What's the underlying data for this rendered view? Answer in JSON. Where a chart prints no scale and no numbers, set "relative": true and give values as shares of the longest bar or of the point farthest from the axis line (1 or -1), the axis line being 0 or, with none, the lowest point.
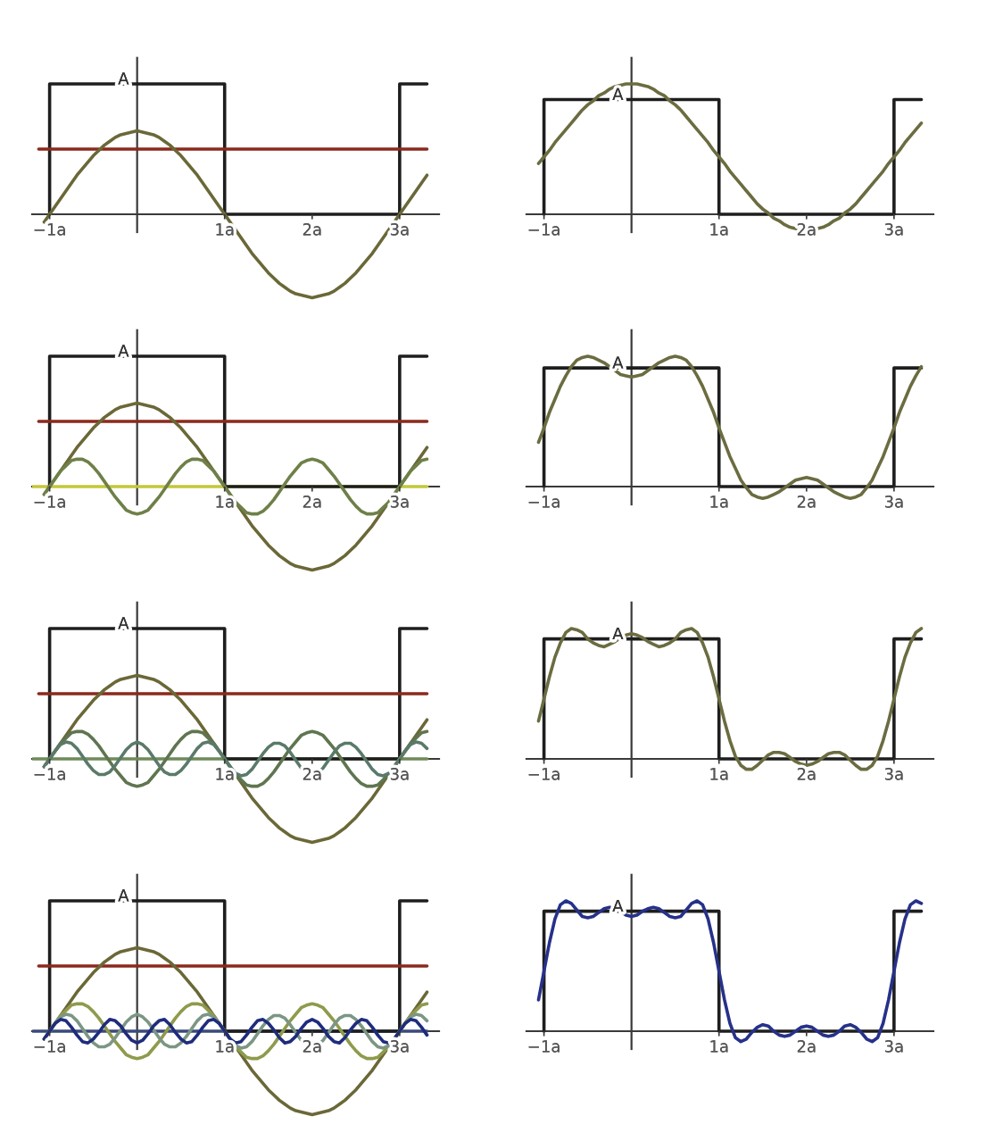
{
  "chart_data": [
    {
      "type": "line",
      "relative": true,
      "tick_labels": "x",
      "xlim": [
        -1.2,
        3.45
      ],
      "xticks": [
        {
          "value": -1,
          "label": "−1a"
        },
        {
          "value": 1,
          "label": "1a"
        },
        {
          "value": 2,
          "label": "2a"
        },
        {
          "value": 3,
          "label": "3a"
        }
      ],
      "x": [
        -1.0625,
        -1,
        -0.9375,
        -0.875,
        -0.8125,
        -0.75,
        -0.6875,
        -0.625,
        -0.5625,
        -0.5,
        -0.4375,
        -0.375,
        -0.3125,
        -0.25,
        -0.1875,
        -0.125,
        -0.0625,
        0,
        0.0625,
        0.125,
        0.1875,
        0.25,
        0.3125,
        0.375,
        0.4375,
        0.5,
        0.5625,
        0.625,
        0.6875,
        0.75,
        0.8125,
        0.875,
        0.9375,
        1,
        1.0625,
        1.125,
        1.1875,
        1.25,
        1.3125,
        1.375,
        1.4375,
        1.5,
        1.5625,
        1.625,
        1.6875,
        1.75,
        1.8125,
        1.875,
        1.9375,
        2,
        2.0625,
        2.125,
        2.1875,
        2.25,
        2.3125,
        2.375,
        2.4375,
        2.5,
        2.5625,
        2.625,
        2.6875,
        2.75,
        2.8125,
        2.875,
        2.9375,
        3,
        3.0625,
        3.125,
        3.1875,
        3.25,
        3.3125
      ],
      "series": [
        {
          "color": "#1e1e1e",
          "x": [
            -1,
            -1,
            1,
            1,
            3,
            3,
            3.3125
          ],
          "values": [
            0,
            1,
            1,
            0,
            0,
            1,
            1
          ]
        },
        {
          "color": "#8a2a1c",
          "x": [
            -1.125,
            3.3125
          ],
          "values": [
            0.5,
            0.5
          ]
        },
        {
          "color": "#6b6838",
          "values": [
            -0.06,
            0,
            0.06,
            0.12,
            0.18,
            0.24,
            0.3,
            0.35,
            0.4,
            0.45,
            0.49,
            0.53,
            0.56,
            0.59,
            0.61,
            0.62,
            0.63,
            0.64,
            0.63,
            0.62,
            0.61,
            0.59,
            0.56,
            0.53,
            0.49,
            0.45,
            0.4,
            0.35,
            0.3,
            0.24,
            0.18,
            0.12,
            0.06,
            0,
            -0.06,
            -0.12,
            -0.18,
            -0.24,
            -0.3,
            -0.35,
            -0.4,
            -0.45,
            -0.49,
            -0.53,
            -0.56,
            -0.59,
            -0.61,
            -0.62,
            -0.63,
            -0.64,
            -0.63,
            -0.62,
            -0.61,
            -0.59,
            -0.56,
            -0.53,
            -0.49,
            -0.45,
            -0.4,
            -0.35,
            -0.3,
            -0.24,
            -0.18,
            -0.12,
            -0.06,
            0,
            0.06,
            0.12,
            0.18,
            0.24,
            0.3
          ]
        }
      ],
      "annotations": [
        {
          "text": "A",
          "y": 1
        }
      ]
    },
    {
      "type": "line",
      "relative": true,
      "tick_labels": "x",
      "xlim": [
        -1.2,
        3.45
      ],
      "xticks": [
        {
          "value": -1,
          "label": "−1a"
        },
        {
          "value": 1,
          "label": "1a"
        },
        {
          "value": 2,
          "label": "2a"
        },
        {
          "value": 3,
          "label": "3a"
        }
      ],
      "x": [
        -1.0625,
        -1,
        -0.9375,
        -0.875,
        -0.8125,
        -0.75,
        -0.6875,
        -0.625,
        -0.5625,
        -0.5,
        -0.4375,
        -0.375,
        -0.3125,
        -0.25,
        -0.1875,
        -0.125,
        -0.0625,
        0,
        0.0625,
        0.125,
        0.1875,
        0.25,
        0.3125,
        0.375,
        0.4375,
        0.5,
        0.5625,
        0.625,
        0.6875,
        0.75,
        0.8125,
        0.875,
        0.9375,
        1,
        1.0625,
        1.125,
        1.1875,
        1.25,
        1.3125,
        1.375,
        1.4375,
        1.5,
        1.5625,
        1.625,
        1.6875,
        1.75,
        1.8125,
        1.875,
        1.9375,
        2,
        2.0625,
        2.125,
        2.1875,
        2.25,
        2.3125,
        2.375,
        2.4375,
        2.5,
        2.5625,
        2.625,
        2.6875,
        2.75,
        2.8125,
        2.875,
        2.9375,
        3,
        3.0625,
        3.125,
        3.1875,
        3.25,
        3.3125
      ],
      "series": [
        {
          "color": "#1e1e1e",
          "x": [
            -1,
            -1,
            1,
            1,
            3,
            3,
            3.3125
          ],
          "values": [
            0,
            0.88,
            0.88,
            0,
            0,
            0.88,
            0.88
          ]
        },
        {
          "color": "#6b6c40",
          "values": [
            0.39,
            0.44,
            0.49,
            0.55,
            0.6,
            0.65,
            0.7,
            0.75,
            0.8,
            0.84,
            0.87,
            0.91,
            0.93,
            0.96,
            0.98,
            0.99,
            1,
            1,
            1,
            0.99,
            0.98,
            0.96,
            0.93,
            0.91,
            0.87,
            0.84,
            0.8,
            0.75,
            0.7,
            0.65,
            0.6,
            0.55,
            0.49,
            0.44,
            0.39,
            0.33,
            0.28,
            0.23,
            0.18,
            0.13,
            0.08,
            0.04,
            0.01,
            -0.03,
            -0.05,
            -0.08,
            -0.1,
            -0.11,
            -0.12,
            -0.12,
            -0.12,
            -0.11,
            -0.1,
            -0.08,
            -0.05,
            -0.03,
            0.01,
            0.04,
            0.08,
            0.13,
            0.18,
            0.23,
            0.28,
            0.33,
            0.39,
            0.44,
            0.49,
            0.55,
            0.6,
            0.65,
            0.7
          ]
        }
      ],
      "annotations": [
        {
          "text": "A",
          "y": 0.88
        }
      ]
    },
    {
      "type": "line",
      "relative": true,
      "tick_labels": "x",
      "xlim": [
        -1.2,
        3.45
      ],
      "xticks": [
        {
          "value": -1,
          "label": "−1a"
        },
        {
          "value": 1,
          "label": "1a"
        },
        {
          "value": 2,
          "label": "2a"
        },
        {
          "value": 3,
          "label": "3a"
        }
      ],
      "x": [
        -1.0625,
        -1,
        -0.9375,
        -0.875,
        -0.8125,
        -0.75,
        -0.6875,
        -0.625,
        -0.5625,
        -0.5,
        -0.4375,
        -0.375,
        -0.3125,
        -0.25,
        -0.1875,
        -0.125,
        -0.0625,
        0,
        0.0625,
        0.125,
        0.1875,
        0.25,
        0.3125,
        0.375,
        0.4375,
        0.5,
        0.5625,
        0.625,
        0.6875,
        0.75,
        0.8125,
        0.875,
        0.9375,
        1,
        1.0625,
        1.125,
        1.1875,
        1.25,
        1.3125,
        1.375,
        1.4375,
        1.5,
        1.5625,
        1.625,
        1.6875,
        1.75,
        1.8125,
        1.875,
        1.9375,
        2,
        2.0625,
        2.125,
        2.1875,
        2.25,
        2.3125,
        2.375,
        2.4375,
        2.5,
        2.5625,
        2.625,
        2.6875,
        2.75,
        2.8125,
        2.875,
        2.9375,
        3,
        3.0625,
        3.125,
        3.1875,
        3.25,
        3.3125
      ],
      "series": [
        {
          "color": "#c4c83a",
          "x": [
            -1.1875,
            3.3125
          ],
          "values": [
            0,
            0
          ]
        },
        {
          "color": "#1e1e1e",
          "x": [
            -1,
            -1,
            1,
            1,
            3,
            3,
            3.3125
          ],
          "values": [
            0,
            1,
            1,
            0,
            0,
            1,
            1
          ]
        },
        {
          "color": "#8a2a1c",
          "x": [
            -1.125,
            3.3125
          ],
          "values": [
            0.5,
            0.5
          ]
        },
        {
          "color": "#6b6838",
          "values": [
            -0.06,
            0,
            0.06,
            0.12,
            0.18,
            0.24,
            0.3,
            0.35,
            0.4,
            0.45,
            0.49,
            0.53,
            0.56,
            0.59,
            0.61,
            0.62,
            0.63,
            0.64,
            0.63,
            0.62,
            0.61,
            0.59,
            0.56,
            0.53,
            0.49,
            0.45,
            0.4,
            0.35,
            0.3,
            0.24,
            0.18,
            0.12,
            0.06,
            0,
            -0.06,
            -0.12,
            -0.18,
            -0.24,
            -0.3,
            -0.35,
            -0.4,
            -0.45,
            -0.49,
            -0.53,
            -0.56,
            -0.59,
            -0.61,
            -0.62,
            -0.63,
            -0.64,
            -0.63,
            -0.62,
            -0.61,
            -0.59,
            -0.56,
            -0.53,
            -0.49,
            -0.45,
            -0.4,
            -0.35,
            -0.3,
            -0.24,
            -0.18,
            -0.12,
            -0.06,
            0,
            0.06,
            0.12,
            0.18,
            0.24,
            0.3
          ]
        },
        {
          "color": "#6e8048",
          "values": [
            -0.06,
            0,
            0.06,
            0.12,
            0.16,
            0.2,
            0.21,
            0.21,
            0.19,
            0.15,
            0.1,
            0.04,
            -0.02,
            -0.08,
            -0.13,
            -0.18,
            -0.2,
            -0.21,
            -0.2,
            -0.18,
            -0.13,
            -0.08,
            -0.02,
            0.04,
            0.1,
            0.15,
            0.19,
            0.21,
            0.21,
            0.2,
            0.16,
            0.12,
            0.06,
            0,
            -0.06,
            -0.12,
            -0.16,
            -0.2,
            -0.21,
            -0.21,
            -0.19,
            -0.15,
            -0.1,
            -0.04,
            0.02,
            0.08,
            0.13,
            0.18,
            0.2,
            0.21,
            0.2,
            0.18,
            0.13,
            0.08,
            0.02,
            -0.04,
            -0.1,
            -0.15,
            -0.19,
            -0.21,
            -0.21,
            -0.2,
            -0.16,
            -0.12,
            -0.06,
            0,
            0.06,
            0.12,
            0.16,
            0.2,
            0.21
          ]
        }
      ],
      "annotations": [
        {
          "text": "A",
          "y": 1
        }
      ]
    },
    {
      "type": "line",
      "relative": true,
      "tick_labels": "x",
      "xlim": [
        -1.2,
        3.45
      ],
      "xticks": [
        {
          "value": -1,
          "label": "−1a"
        },
        {
          "value": 1,
          "label": "1a"
        },
        {
          "value": 2,
          "label": "2a"
        },
        {
          "value": 3,
          "label": "3a"
        }
      ],
      "x": [
        -1.0625,
        -1,
        -0.9375,
        -0.875,
        -0.8125,
        -0.75,
        -0.6875,
        -0.625,
        -0.5625,
        -0.5,
        -0.4375,
        -0.375,
        -0.3125,
        -0.25,
        -0.1875,
        -0.125,
        -0.0625,
        0,
        0.0625,
        0.125,
        0.1875,
        0.25,
        0.3125,
        0.375,
        0.4375,
        0.5,
        0.5625,
        0.625,
        0.6875,
        0.75,
        0.8125,
        0.875,
        0.9375,
        1,
        1.0625,
        1.125,
        1.1875,
        1.25,
        1.3125,
        1.375,
        1.4375,
        1.5,
        1.5625,
        1.625,
        1.6875,
        1.75,
        1.8125,
        1.875,
        1.9375,
        2,
        2.0625,
        2.125,
        2.1875,
        2.25,
        2.3125,
        2.375,
        2.4375,
        2.5,
        2.5625,
        2.625,
        2.6875,
        2.75,
        2.8125,
        2.875,
        2.9375,
        3,
        3.0625,
        3.125,
        3.1875,
        3.25,
        3.3125
      ],
      "series": [
        {
          "color": "#1e1e1e",
          "x": [
            -1,
            -1,
            1,
            1,
            3,
            3,
            3.3125
          ],
          "values": [
            0,
            0.91,
            0.91,
            0,
            0,
            0.91,
            0.91
          ]
        },
        {
          "color": "#6b6c40",
          "values": [
            0.34,
            0.45,
            0.57,
            0.67,
            0.77,
            0.85,
            0.92,
            0.97,
            0.99,
            1,
            0.99,
            0.97,
            0.95,
            0.92,
            0.89,
            0.86,
            0.85,
            0.84,
            0.85,
            0.86,
            0.89,
            0.92,
            0.95,
            0.97,
            0.99,
            1,
            0.99,
            0.97,
            0.92,
            0.85,
            0.77,
            0.67,
            0.57,
            0.45,
            0.34,
            0.23,
            0.14,
            0.05,
            -0.01,
            -0.06,
            -0.08,
            -0.09,
            -0.08,
            -0.06,
            -0.04,
            -0.01,
            0.02,
            0.05,
            0.06,
            0.07,
            0.06,
            0.05,
            0.02,
            -0.01,
            -0.04,
            -0.06,
            -0.08,
            -0.09,
            -0.08,
            -0.06,
            -0.01,
            0.05,
            0.14,
            0.23,
            0.34,
            0.45,
            0.57,
            0.67,
            0.77,
            0.85,
            0.92
          ]
        }
      ],
      "annotations": [
        {
          "text": "A",
          "y": 0.91
        }
      ]
    },
    {
      "type": "line",
      "relative": true,
      "tick_labels": "x",
      "xlim": [
        -1.2,
        3.45
      ],
      "xticks": [
        {
          "value": -1,
          "label": "−1a"
        },
        {
          "value": 1,
          "label": "1a"
        },
        {
          "value": 2,
          "label": "2a"
        },
        {
          "value": 3,
          "label": "3a"
        }
      ],
      "x": [
        -1.0625,
        -1,
        -0.9375,
        -0.875,
        -0.8125,
        -0.75,
        -0.6875,
        -0.625,
        -0.5625,
        -0.5,
        -0.4375,
        -0.375,
        -0.3125,
        -0.25,
        -0.1875,
        -0.125,
        -0.0625,
        0,
        0.0625,
        0.125,
        0.1875,
        0.25,
        0.3125,
        0.375,
        0.4375,
        0.5,
        0.5625,
        0.625,
        0.6875,
        0.75,
        0.8125,
        0.875,
        0.9375,
        1,
        1.0625,
        1.125,
        1.1875,
        1.25,
        1.3125,
        1.375,
        1.4375,
        1.5,
        1.5625,
        1.625,
        1.6875,
        1.75,
        1.8125,
        1.875,
        1.9375,
        2,
        2.0625,
        2.125,
        2.1875,
        2.25,
        2.3125,
        2.375,
        2.4375,
        2.5,
        2.5625,
        2.625,
        2.6875,
        2.75,
        2.8125,
        2.875,
        2.9375,
        3,
        3.0625,
        3.125,
        3.1875,
        3.25,
        3.3125
      ],
      "series": [
        {
          "color": "#6f8a5a",
          "x": [
            -1.1875,
            3.3125
          ],
          "values": [
            0,
            0
          ]
        },
        {
          "color": "#1e1e1e",
          "x": [
            -1,
            -1,
            1,
            1,
            3,
            3,
            3.3125
          ],
          "values": [
            0,
            1,
            1,
            0,
            0,
            1,
            1
          ]
        },
        {
          "color": "#8a2a1c",
          "x": [
            -1.125,
            3.3125
          ],
          "values": [
            0.5,
            0.5
          ]
        },
        {
          "color": "#6b6838",
          "values": [
            -0.06,
            0,
            0.06,
            0.12,
            0.18,
            0.24,
            0.3,
            0.35,
            0.4,
            0.45,
            0.49,
            0.53,
            0.56,
            0.59,
            0.61,
            0.62,
            0.63,
            0.64,
            0.63,
            0.62,
            0.61,
            0.59,
            0.56,
            0.53,
            0.49,
            0.45,
            0.4,
            0.35,
            0.3,
            0.24,
            0.18,
            0.12,
            0.06,
            0,
            -0.06,
            -0.12,
            -0.18,
            -0.24,
            -0.3,
            -0.35,
            -0.4,
            -0.45,
            -0.49,
            -0.53,
            -0.56,
            -0.59,
            -0.61,
            -0.62,
            -0.63,
            -0.64,
            -0.63,
            -0.62,
            -0.61,
            -0.59,
            -0.56,
            -0.53,
            -0.49,
            -0.45,
            -0.4,
            -0.35,
            -0.3,
            -0.24,
            -0.18,
            -0.12,
            -0.06,
            0,
            0.06,
            0.12,
            0.18,
            0.24,
            0.3
          ]
        },
        {
          "color": "#5f7550",
          "values": [
            -0.06,
            0,
            0.06,
            0.12,
            0.16,
            0.2,
            0.21,
            0.21,
            0.19,
            0.15,
            0.1,
            0.04,
            -0.02,
            -0.08,
            -0.13,
            -0.18,
            -0.2,
            -0.21,
            -0.2,
            -0.18,
            -0.13,
            -0.08,
            -0.02,
            0.04,
            0.1,
            0.15,
            0.19,
            0.21,
            0.21,
            0.2,
            0.16,
            0.12,
            0.06,
            0,
            -0.06,
            -0.12,
            -0.16,
            -0.2,
            -0.21,
            -0.21,
            -0.19,
            -0.15,
            -0.1,
            -0.04,
            0.02,
            0.08,
            0.13,
            0.18,
            0.2,
            0.21,
            0.2,
            0.18,
            0.13,
            0.08,
            0.02,
            -0.04,
            -0.1,
            -0.15,
            -0.19,
            -0.21,
            -0.21,
            -0.2,
            -0.16,
            -0.12,
            -0.06,
            0,
            0.06,
            0.12,
            0.16,
            0.2,
            0.21
          ]
        },
        {
          "color": "#5a7a6a",
          "values": [
            -0.06,
            0,
            0.06,
            0.11,
            0.13,
            0.12,
            0.08,
            0.02,
            -0.04,
            -0.09,
            -0.12,
            -0.12,
            -0.1,
            -0.05,
            0.01,
            0.07,
            0.11,
            0.13,
            0.11,
            0.07,
            0.01,
            -0.05,
            -0.1,
            -0.12,
            -0.12,
            -0.09,
            -0.04,
            0.02,
            0.08,
            0.12,
            0.13,
            0.11,
            0.06,
            0,
            -0.06,
            -0.11,
            -0.13,
            -0.12,
            -0.08,
            -0.02,
            0.04,
            0.09,
            0.12,
            0.12,
            0.1,
            0.05,
            -0.01,
            -0.07,
            -0.11,
            -0.13,
            -0.11,
            -0.07,
            -0.01,
            0.05,
            0.1,
            0.12,
            0.12,
            0.09,
            0.04,
            -0.02,
            -0.08,
            -0.12,
            -0.13,
            -0.11,
            -0.06,
            0,
            0.06,
            0.11,
            0.13,
            0.12,
            0.08
          ]
        }
      ],
      "annotations": [
        {
          "text": "A",
          "y": 1
        }
      ]
    },
    {
      "type": "line",
      "relative": true,
      "tick_labels": "x",
      "xlim": [
        -1.2,
        3.45
      ],
      "xticks": [
        {
          "value": -1,
          "label": "−1a"
        },
        {
          "value": 1,
          "label": "1a"
        },
        {
          "value": 2,
          "label": "2a"
        },
        {
          "value": 3,
          "label": "3a"
        }
      ],
      "x": [
        -1.0625,
        -1,
        -0.9375,
        -0.875,
        -0.8125,
        -0.75,
        -0.6875,
        -0.625,
        -0.5625,
        -0.5,
        -0.4375,
        -0.375,
        -0.3125,
        -0.25,
        -0.1875,
        -0.125,
        -0.0625,
        0,
        0.0625,
        0.125,
        0.1875,
        0.25,
        0.3125,
        0.375,
        0.4375,
        0.5,
        0.5625,
        0.625,
        0.6875,
        0.75,
        0.8125,
        0.875,
        0.9375,
        1,
        1.0625,
        1.125,
        1.1875,
        1.25,
        1.3125,
        1.375,
        1.4375,
        1.5,
        1.5625,
        1.625,
        1.6875,
        1.75,
        1.8125,
        1.875,
        1.9375,
        2,
        2.0625,
        2.125,
        2.1875,
        2.25,
        2.3125,
        2.375,
        2.4375,
        2.5,
        2.5625,
        2.625,
        2.6875,
        2.75,
        2.8125,
        2.875,
        2.9375,
        3,
        3.0625,
        3.125,
        3.1875,
        3.25,
        3.3125
      ],
      "series": [
        {
          "color": "#1e1e1e",
          "x": [
            -1,
            -1,
            1,
            1,
            3,
            3,
            3.3125
          ],
          "values": [
            0,
            0.92,
            0.92,
            0,
            0,
            0.92,
            0.92
          ]
        },
        {
          "color": "#6b6c40",
          "values": [
            0.29,
            0.46,
            0.63,
            0.78,
            0.89,
            0.97,
            1,
            0.99,
            0.97,
            0.92,
            0.89,
            0.87,
            0.86,
            0.88,
            0.9,
            0.93,
            0.95,
            0.96,
            0.95,
            0.93,
            0.9,
            0.88,
            0.86,
            0.87,
            0.89,
            0.92,
            0.97,
            0.99,
            1,
            0.97,
            0.89,
            0.78,
            0.63,
            0.46,
            0.29,
            0.14,
            0.02,
            -0.05,
            -0.08,
            -0.08,
            -0.05,
            -0.01,
            0.03,
            0.05,
            0.05,
            0.04,
            0.01,
            -0.02,
            -0.04,
            -0.05,
            -0.04,
            -0.02,
            0.01,
            0.04,
            0.05,
            0.05,
            0.03,
            -0.01,
            -0.05,
            -0.08,
            -0.08,
            -0.05,
            0.02,
            0.14,
            0.29,
            0.46,
            0.63,
            0.78,
            0.89,
            0.97,
            1
          ]
        }
      ],
      "annotations": [
        {
          "text": "A",
          "y": 0.92
        }
      ]
    },
    {
      "type": "line",
      "relative": true,
      "tick_labels": "x",
      "xlim": [
        -1.2,
        3.45
      ],
      "xticks": [
        {
          "value": -1,
          "label": "−1a"
        },
        {
          "value": 1,
          "label": "1a"
        },
        {
          "value": 2,
          "label": "2a"
        },
        {
          "value": 3,
          "label": "3a"
        }
      ],
      "x": [
        -1.0625,
        -1,
        -0.9375,
        -0.875,
        -0.8125,
        -0.75,
        -0.6875,
        -0.625,
        -0.5625,
        -0.5,
        -0.4375,
        -0.375,
        -0.3125,
        -0.25,
        -0.1875,
        -0.125,
        -0.0625,
        0,
        0.0625,
        0.125,
        0.1875,
        0.25,
        0.3125,
        0.375,
        0.4375,
        0.5,
        0.5625,
        0.625,
        0.6875,
        0.75,
        0.8125,
        0.875,
        0.9375,
        1,
        1.0625,
        1.125,
        1.1875,
        1.25,
        1.3125,
        1.375,
        1.4375,
        1.5,
        1.5625,
        1.625,
        1.6875,
        1.75,
        1.8125,
        1.875,
        1.9375,
        2,
        2.0625,
        2.125,
        2.1875,
        2.25,
        2.3125,
        2.375,
        2.4375,
        2.5,
        2.5625,
        2.625,
        2.6875,
        2.75,
        2.8125,
        2.875,
        2.9375,
        3,
        3.0625,
        3.125,
        3.1875,
        3.25,
        3.3125
      ],
      "series": [
        {
          "color": "#3a4a7a",
          "x": [
            -1.1875,
            3.3125
          ],
          "values": [
            0,
            0
          ]
        },
        {
          "color": "#1e1e1e",
          "x": [
            -1,
            -1,
            1,
            1,
            3,
            3,
            3.3125
          ],
          "values": [
            0,
            1,
            1,
            0,
            0,
            1,
            1
          ]
        },
        {
          "color": "#8a2a1c",
          "x": [
            -1.125,
            3.3125
          ],
          "values": [
            0.5,
            0.5
          ]
        },
        {
          "color": "#6b6838",
          "values": [
            -0.06,
            0,
            0.06,
            0.12,
            0.18,
            0.24,
            0.3,
            0.35,
            0.4,
            0.45,
            0.49,
            0.53,
            0.56,
            0.59,
            0.61,
            0.62,
            0.63,
            0.64,
            0.63,
            0.62,
            0.61,
            0.59,
            0.56,
            0.53,
            0.49,
            0.45,
            0.4,
            0.35,
            0.3,
            0.24,
            0.18,
            0.12,
            0.06,
            0,
            -0.06,
            -0.12,
            -0.18,
            -0.24,
            -0.3,
            -0.35,
            -0.4,
            -0.45,
            -0.49,
            -0.53,
            -0.56,
            -0.59,
            -0.61,
            -0.62,
            -0.63,
            -0.64,
            -0.63,
            -0.62,
            -0.61,
            -0.59,
            -0.56,
            -0.53,
            -0.49,
            -0.45,
            -0.4,
            -0.35,
            -0.3,
            -0.24,
            -0.18,
            -0.12,
            -0.06,
            0,
            0.06,
            0.12,
            0.18,
            0.24,
            0.3
          ]
        },
        {
          "color": "#8f9a4c",
          "values": [
            -0.06,
            0,
            0.06,
            0.12,
            0.16,
            0.2,
            0.21,
            0.21,
            0.19,
            0.15,
            0.1,
            0.04,
            -0.02,
            -0.08,
            -0.13,
            -0.18,
            -0.2,
            -0.21,
            -0.2,
            -0.18,
            -0.13,
            -0.08,
            -0.02,
            0.04,
            0.1,
            0.15,
            0.19,
            0.21,
            0.21,
            0.2,
            0.16,
            0.12,
            0.06,
            0,
            -0.06,
            -0.12,
            -0.16,
            -0.2,
            -0.21,
            -0.21,
            -0.19,
            -0.15,
            -0.1,
            -0.04,
            0.02,
            0.08,
            0.13,
            0.18,
            0.2,
            0.21,
            0.2,
            0.18,
            0.13,
            0.08,
            0.02,
            -0.04,
            -0.1,
            -0.15,
            -0.19,
            -0.21,
            -0.21,
            -0.2,
            -0.16,
            -0.12,
            -0.06,
            0,
            0.06,
            0.12,
            0.16,
            0.2,
            0.21
          ]
        },
        {
          "color": "#7c9684",
          "values": [
            -0.06,
            0,
            0.06,
            0.11,
            0.13,
            0.12,
            0.08,
            0.02,
            -0.04,
            -0.09,
            -0.12,
            -0.12,
            -0.1,
            -0.05,
            0.01,
            0.07,
            0.11,
            0.13,
            0.11,
            0.07,
            0.01,
            -0.05,
            -0.1,
            -0.12,
            -0.12,
            -0.09,
            -0.04,
            0.02,
            0.08,
            0.12,
            0.13,
            0.11,
            0.06,
            0,
            -0.06,
            -0.11,
            -0.13,
            -0.12,
            -0.08,
            -0.02,
            0.04,
            0.09,
            0.12,
            0.12,
            0.1,
            0.05,
            -0.01,
            -0.07,
            -0.11,
            -0.13,
            -0.11,
            -0.07,
            -0.01,
            0.05,
            0.1,
            0.12,
            0.12,
            0.09,
            0.04,
            -0.02,
            -0.08,
            -0.12,
            -0.13,
            -0.11,
            -0.06,
            0,
            0.06,
            0.11,
            0.13,
            0.12,
            0.08
          ]
        },
        {
          "color": "#1f2c7c",
          "values": [
            -0.06,
            0,
            0.06,
            0.09,
            0.08,
            0.03,
            -0.03,
            -0.08,
            -0.09,
            -0.06,
            -0.01,
            0.05,
            0.09,
            0.08,
            0.04,
            -0.02,
            -0.07,
            -0.09,
            -0.07,
            -0.02,
            0.04,
            0.08,
            0.09,
            0.05,
            -0.01,
            -0.06,
            -0.09,
            -0.08,
            -0.03,
            0.03,
            0.08,
            0.09,
            0.06,
            0,
            -0.06,
            -0.09,
            -0.08,
            -0.03,
            0.03,
            0.08,
            0.09,
            0.06,
            0.01,
            -0.05,
            -0.09,
            -0.08,
            -0.04,
            0.02,
            0.07,
            0.09,
            0.07,
            0.02,
            -0.04,
            -0.08,
            -0.09,
            -0.05,
            0.01,
            0.06,
            0.09,
            0.08,
            0.03,
            -0.03,
            -0.08,
            -0.09,
            -0.06,
            0,
            0.06,
            0.09,
            0.08,
            0.03,
            -0.03
          ]
        }
      ],
      "annotations": [
        {
          "text": "A",
          "y": 1
        }
      ]
    },
    {
      "type": "line",
      "relative": true,
      "tick_labels": "x",
      "xlim": [
        -1.2,
        3.45
      ],
      "xticks": [
        {
          "value": -1,
          "label": "−1a"
        },
        {
          "value": 1,
          "label": "1a"
        },
        {
          "value": 2,
          "label": "2a"
        },
        {
          "value": 3,
          "label": "3a"
        }
      ],
      "x": [
        -1.0625,
        -1,
        -0.9375,
        -0.875,
        -0.8125,
        -0.75,
        -0.6875,
        -0.625,
        -0.5625,
        -0.5,
        -0.4375,
        -0.375,
        -0.3125,
        -0.25,
        -0.1875,
        -0.125,
        -0.0625,
        0,
        0.0625,
        0.125,
        0.1875,
        0.25,
        0.3125,
        0.375,
        0.4375,
        0.5,
        0.5625,
        0.625,
        0.6875,
        0.75,
        0.8125,
        0.875,
        0.9375,
        1,
        1.0625,
        1.125,
        1.1875,
        1.25,
        1.3125,
        1.375,
        1.4375,
        1.5,
        1.5625,
        1.625,
        1.6875,
        1.75,
        1.8125,
        1.875,
        1.9375,
        2,
        2.0625,
        2.125,
        2.1875,
        2.25,
        2.3125,
        2.375,
        2.4375,
        2.5,
        2.5625,
        2.625,
        2.6875,
        2.75,
        2.8125,
        2.875,
        2.9375,
        3,
        3.0625,
        3.125,
        3.1875,
        3.25,
        3.3125
      ],
      "series": [
        {
          "color": "#1e1e1e",
          "x": [
            -1,
            -1,
            1,
            1,
            3,
            3,
            3.3125
          ],
          "values": [
            0,
            0.92,
            0.92,
            0,
            0,
            0.92,
            0.92
          ]
        },
        {
          "color": "#26318a",
          "values": [
            0.24,
            0.46,
            0.68,
            0.86,
            0.97,
            1,
            0.98,
            0.93,
            0.88,
            0.87,
            0.88,
            0.91,
            0.94,
            0.95,
            0.94,
            0.92,
            0.89,
            0.88,
            0.89,
            0.92,
            0.94,
            0.95,
            0.94,
            0.91,
            0.88,
            0.87,
            0.88,
            0.93,
            0.98,
            1,
            0.97,
            0.86,
            0.68,
            0.46,
            0.24,
            0.06,
            -0.05,
            -0.08,
            -0.06,
            -0.01,
            0.03,
            0.05,
            0.04,
            0,
            -0.03,
            -0.04,
            -0.03,
            0,
            0.03,
            0.04,
            0.03,
            0,
            -0.03,
            -0.04,
            -0.03,
            0,
            0.04,
            0.05,
            0.03,
            -0.01,
            -0.06,
            -0.08,
            -0.05,
            0.06,
            0.24,
            0.46,
            0.68,
            0.86,
            0.97,
            1,
            0.98
          ]
        }
      ],
      "annotations": [
        {
          "text": "A",
          "y": 0.92
        }
      ]
    }
  ]
}
